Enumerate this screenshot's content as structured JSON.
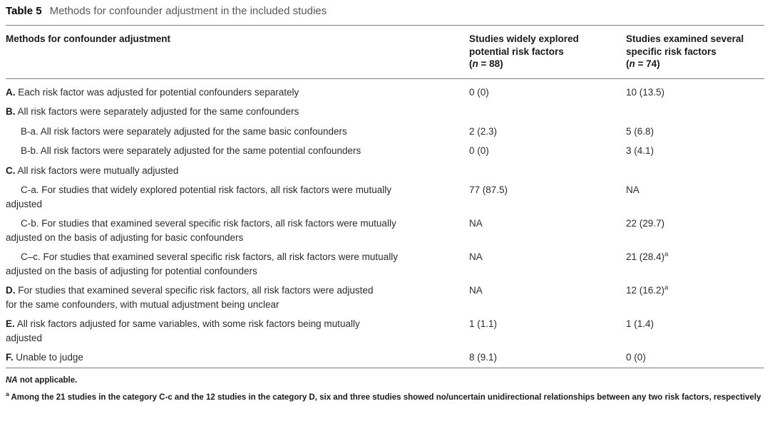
{
  "caption": {
    "label": "Table 5",
    "text": "Methods for confounder adjustment in the included studies"
  },
  "header": {
    "col1": "Methods for confounder adjustment",
    "col2": {
      "line1": "Studies widely explored",
      "line2": "potential risk factors",
      "n_open": "(",
      "n_label": "n",
      "n_rest": " = 88)"
    },
    "col3": {
      "line1": "Studies examined several",
      "line2": "specific risk factors",
      "n_open": "(",
      "n_label": "n",
      "n_rest": " = 74)"
    }
  },
  "rows": [
    {
      "prefix": "A.",
      "line1": " Each risk factor was adjusted for potential confounders separately",
      "line2": "",
      "v1": "0 (0)",
      "v2": "10 (13.5)",
      "v2sup": ""
    },
    {
      "prefix": "B.",
      "line1": " All risk factors were separately adjusted for the same confounders",
      "line2": "",
      "v1": "",
      "v2": "",
      "v2sup": ""
    },
    {
      "prefix": "B-a.",
      "line1": " All risk factors were separately adjusted for the same basic confounders",
      "line2": "",
      "v1": "2 (2.3)",
      "v2": "5 (6.8)",
      "v2sup": ""
    },
    {
      "prefix": "B-b.",
      "line1": " All risk factors were separately adjusted for the same potential confounders",
      "line2": "",
      "v1": "0 (0)",
      "v2": "3 (4.1)",
      "v2sup": ""
    },
    {
      "prefix": "C.",
      "line1": " All risk factors were mutually adjusted",
      "line2": "",
      "v1": "",
      "v2": "",
      "v2sup": ""
    },
    {
      "prefix": "C-a.",
      "line1": " For studies that widely explored potential risk factors, all risk factors were mutually",
      "line2": "adjusted",
      "v1": "77 (87.5)",
      "v2": "NA",
      "v2sup": ""
    },
    {
      "prefix": "C-b.",
      "line1": " For studies that examined several specific risk factors, all risk factors were mutually",
      "line2": "adjusted on the basis of adjusting for basic confounders",
      "v1": "NA",
      "v2": "22 (29.7)",
      "v2sup": ""
    },
    {
      "prefix": "C–c.",
      "line1": " For studies that examined several specific risk factors, all risk factors were mutually",
      "line2": "adjusted on the basis of adjusting for potential confounders",
      "v1": "NA",
      "v2": "21 (28.4)",
      "v2sup": "a"
    },
    {
      "prefix": "D.",
      "line1": " For studies that examined several specific risk factors, all risk factors were adjusted",
      "line2": "for the same confounders, with mutual adjustment being unclear",
      "v1": "NA",
      "v2": "12 (16.2)",
      "v2sup": "a"
    },
    {
      "prefix": "E.",
      "line1": " All risk factors adjusted for same variables, with some risk factors being mutually",
      "line2": "adjusted",
      "v1": "1 (1.1)",
      "v2": "1 (1.4)",
      "v2sup": ""
    },
    {
      "prefix": "F.",
      "line1": " Unable to judge",
      "line2": "",
      "v1": "8 (9.1)",
      "v2": "0 (0)",
      "v2sup": ""
    }
  ],
  "footnotes": {
    "na": {
      "abbr": "NA",
      "text": " not applicable."
    },
    "a": {
      "sup": "a",
      "text": " Among the 21 studies in the category C-c and the 12 studies in the category D, six and three studies showed no/uncertain unidirectional relationships between any two risk factors, respectively"
    }
  }
}
